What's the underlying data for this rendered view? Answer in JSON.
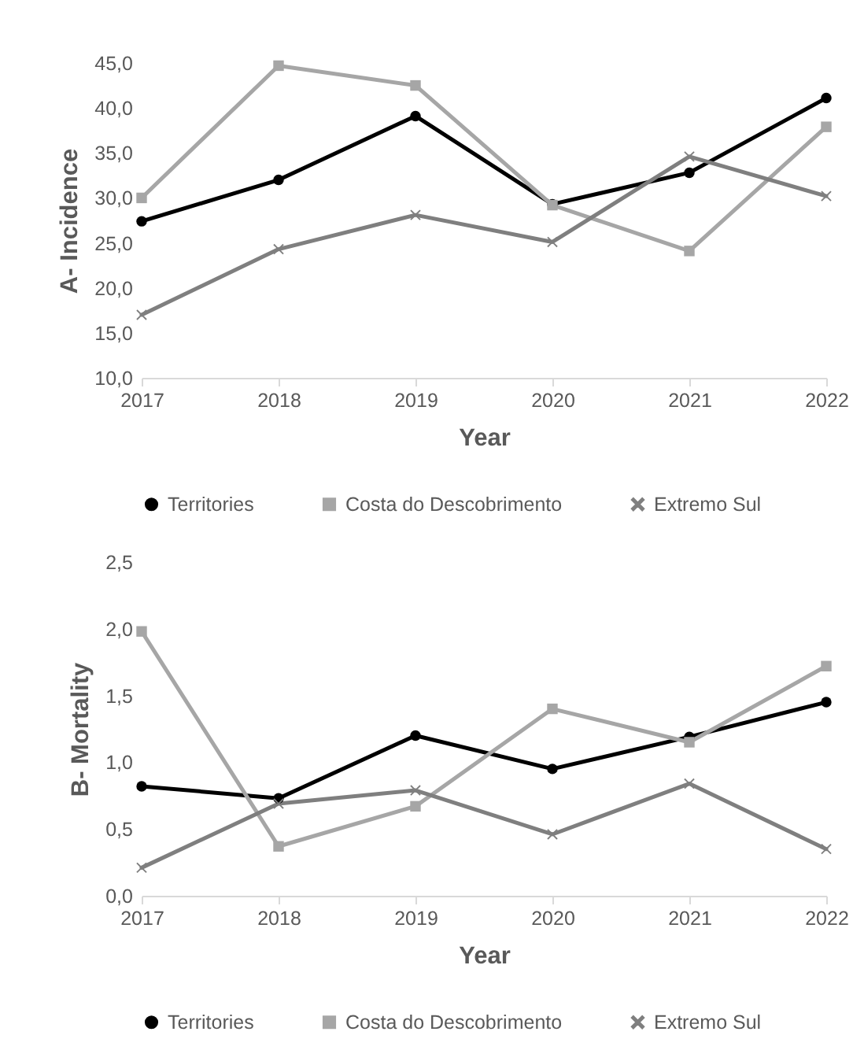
{
  "chart_data": [
    {
      "type": "line",
      "categories": [
        "2017",
        "2018",
        "2019",
        "2020",
        "2021",
        "2022"
      ],
      "xlabel": "Year",
      "ylabel": "A- Incidence",
      "ylim": [
        10,
        45
      ],
      "yticks": [
        {
          "value": 10,
          "label": "10,0"
        },
        {
          "value": 15,
          "label": "15,0"
        },
        {
          "value": 20,
          "label": "20,0"
        },
        {
          "value": 25,
          "label": "25,0"
        },
        {
          "value": 30,
          "label": "30,0"
        },
        {
          "value": 35,
          "label": "35,0"
        },
        {
          "value": 40,
          "label": "40,0"
        },
        {
          "value": 45,
          "label": "45,0"
        }
      ],
      "grid": false,
      "legend": "bottom",
      "line_style": "solid",
      "series": [
        {
          "name": "Territories",
          "color": "#000000",
          "marker": "circle",
          "values": [
            27.4,
            32.0,
            39.1,
            29.3,
            32.8,
            41.1
          ]
        },
        {
          "name": "Costa do Descobrimento",
          "color": "#a6a6a6",
          "marker": "square",
          "values": [
            30.0,
            44.7,
            42.5,
            29.2,
            24.1,
            37.9
          ]
        },
        {
          "name": "Extremo Sul",
          "color": "#7f7f7f",
          "marker": "cross",
          "values": [
            17.0,
            24.3,
            28.1,
            25.1,
            34.6,
            30.2
          ]
        }
      ]
    },
    {
      "type": "line",
      "categories": [
        "2017",
        "2018",
        "2019",
        "2020",
        "2021",
        "2022"
      ],
      "xlabel": "Year",
      "ylabel": "B- Mortality",
      "ylim": [
        0,
        2.5
      ],
      "yticks": [
        {
          "value": 0,
          "label": "0,0"
        },
        {
          "value": 0.5,
          "label": "0,5"
        },
        {
          "value": 1,
          "label": "1,0"
        },
        {
          "value": 1.5,
          "label": "1,5"
        },
        {
          "value": 2,
          "label": "2,0"
        },
        {
          "value": 2.5,
          "label": "2,5"
        }
      ],
      "grid": false,
      "legend": "bottom",
      "line_style": "solid",
      "series": [
        {
          "name": "Territories",
          "color": "#000000",
          "marker": "circle",
          "values": [
            0.82,
            0.73,
            1.2,
            0.95,
            1.19,
            1.45
          ]
        },
        {
          "name": "Costa do Descobrimento",
          "color": "#a6a6a6",
          "marker": "square",
          "values": [
            1.98,
            0.37,
            0.67,
            1.4,
            1.15,
            1.72
          ]
        },
        {
          "name": "Extremo Sul",
          "color": "#7f7f7f",
          "marker": "cross",
          "values": [
            0.21,
            0.69,
            0.79,
            0.46,
            0.84,
            0.35
          ]
        }
      ]
    }
  ]
}
